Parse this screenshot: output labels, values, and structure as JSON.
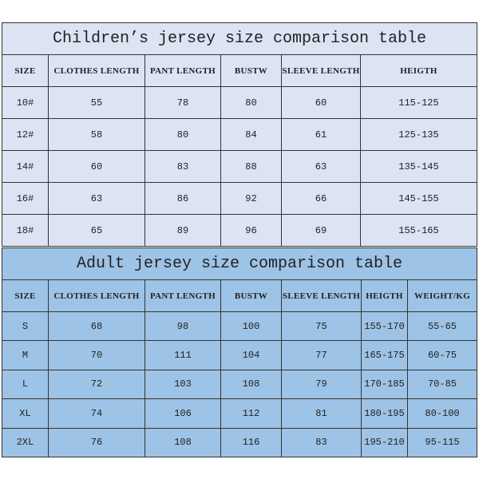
{
  "children": {
    "title": "Children’s jersey size comparison table",
    "headers": [
      "SIZE",
      "CLOTHES LENGTH",
      "PANT LENGTH",
      "BUSTW",
      "SLEEVE LENGTH",
      "HEIGTH"
    ],
    "rows": [
      [
        "10#",
        "55",
        "78",
        "80",
        "60",
        "115-125"
      ],
      [
        "12#",
        "58",
        "80",
        "84",
        "61",
        "125-135"
      ],
      [
        "14#",
        "60",
        "83",
        "88",
        "63",
        "135-145"
      ],
      [
        "16#",
        "63",
        "86",
        "92",
        "66",
        "145-155"
      ],
      [
        "18#",
        "65",
        "89",
        "96",
        "69",
        "155-165"
      ]
    ]
  },
  "adult": {
    "title": "Adult jersey size comparison table",
    "headers": [
      "SIZE",
      "CLOTHES LENGTH",
      "PANT LENGTH",
      "BUSTW",
      "SLEEVE LENGTH",
      "HEIGTH",
      "WEIGHT/KG"
    ],
    "rows": [
      [
        "S",
        "68",
        "98",
        "100",
        "75",
        "155-170",
        "55-65"
      ],
      [
        "M",
        "70",
        "111",
        "104",
        "77",
        "165-175",
        "60-75"
      ],
      [
        "L",
        "72",
        "103",
        "108",
        "79",
        "170-185",
        "70-85"
      ],
      [
        "XL",
        "74",
        "106",
        "112",
        "81",
        "180-195",
        "80-100"
      ],
      [
        "2XL",
        "76",
        "108",
        "116",
        "83",
        "195-210",
        "95-115"
      ]
    ]
  },
  "colors": {
    "children_bg": "#dce3f3",
    "adult_bg": "#9dc3e6"
  }
}
